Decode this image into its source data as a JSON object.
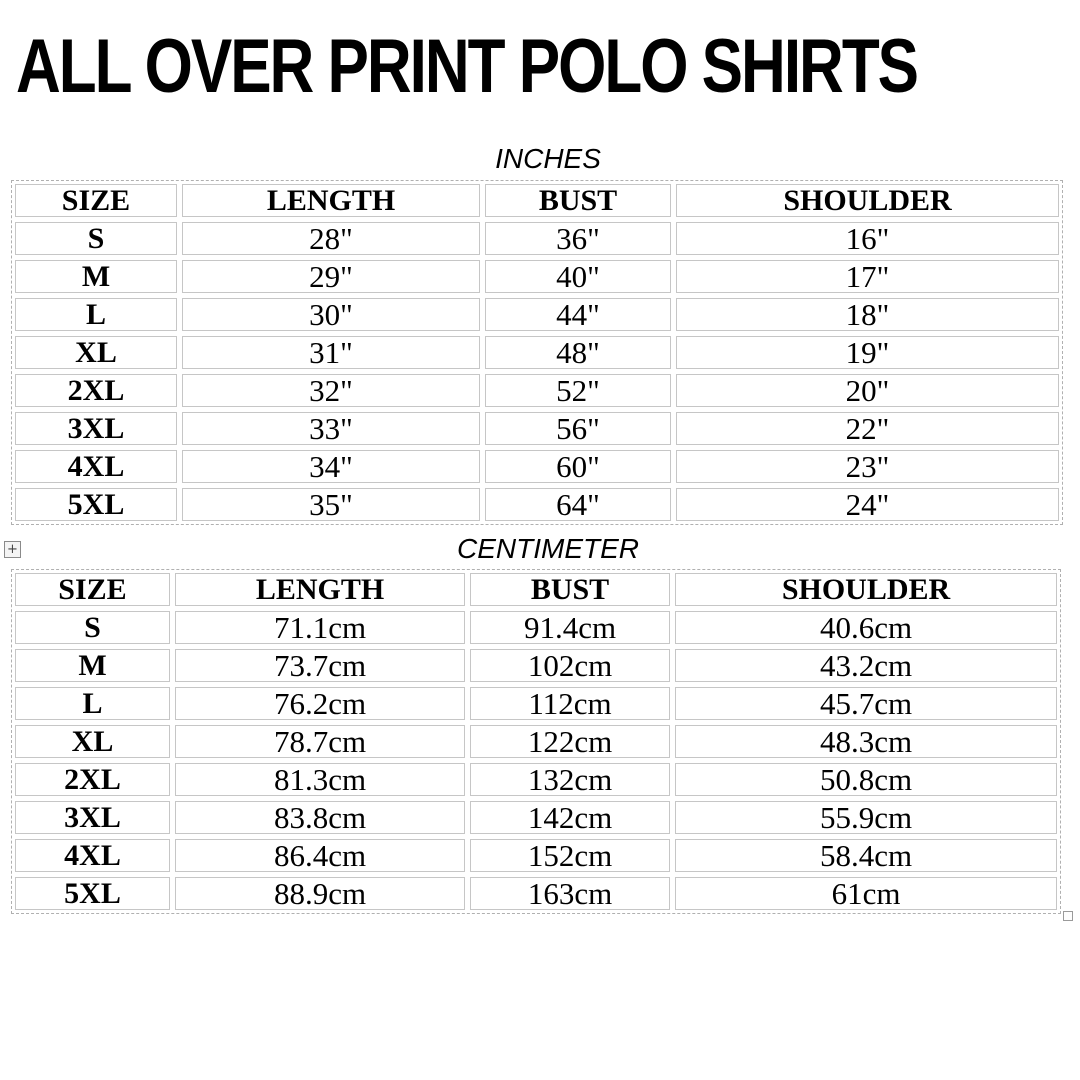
{
  "title": "ALL OVER PRINT POLO SHIRTS",
  "tables": [
    {
      "id": "inches",
      "heading": "INCHES",
      "columns": [
        "SIZE",
        "LENGTH",
        "BUST",
        "SHOULDER"
      ],
      "rows": [
        [
          "S",
          "28\"",
          "36\"",
          "16\""
        ],
        [
          "M",
          "29\"",
          "40\"",
          "17\""
        ],
        [
          "L",
          "30\"",
          "44\"",
          "18\""
        ],
        [
          "XL",
          "31\"",
          "48\"",
          "19\""
        ],
        [
          "2XL",
          "32\"",
          "52\"",
          "20\""
        ],
        [
          "3XL",
          "33\"",
          "56\"",
          "22\""
        ],
        [
          "4XL",
          "34\"",
          "60\"",
          "23\""
        ],
        [
          "5XL",
          "35\"",
          "64\"",
          "24\""
        ]
      ]
    },
    {
      "id": "centimeter",
      "heading": "CENTIMETER",
      "columns": [
        "SIZE",
        "LENGTH",
        "BUST",
        "SHOULDER"
      ],
      "rows": [
        [
          "S",
          "71.1cm",
          "91.4cm",
          "40.6cm"
        ],
        [
          "M",
          "73.7cm",
          "102cm",
          "43.2cm"
        ],
        [
          "L",
          "76.2cm",
          "112cm",
          "45.7cm"
        ],
        [
          "XL",
          "78.7cm",
          "122cm",
          "48.3cm"
        ],
        [
          "2XL",
          "81.3cm",
          "132cm",
          "50.8cm"
        ],
        [
          "3XL",
          "83.8cm",
          "142cm",
          "55.9cm"
        ],
        [
          "4XL",
          "86.4cm",
          "152cm",
          "58.4cm"
        ],
        [
          "5XL",
          "88.9cm",
          "163cm",
          "61cm"
        ]
      ]
    }
  ],
  "icons": {
    "move_handle_glyph": "+",
    "move_handle": "table-move-handle",
    "resize_handle": "table-resize-handle"
  },
  "colors": {
    "cell_border": "#c6c6c6",
    "dashed_border": "#b0b0b0",
    "text": "#000000",
    "background": "#ffffff"
  }
}
